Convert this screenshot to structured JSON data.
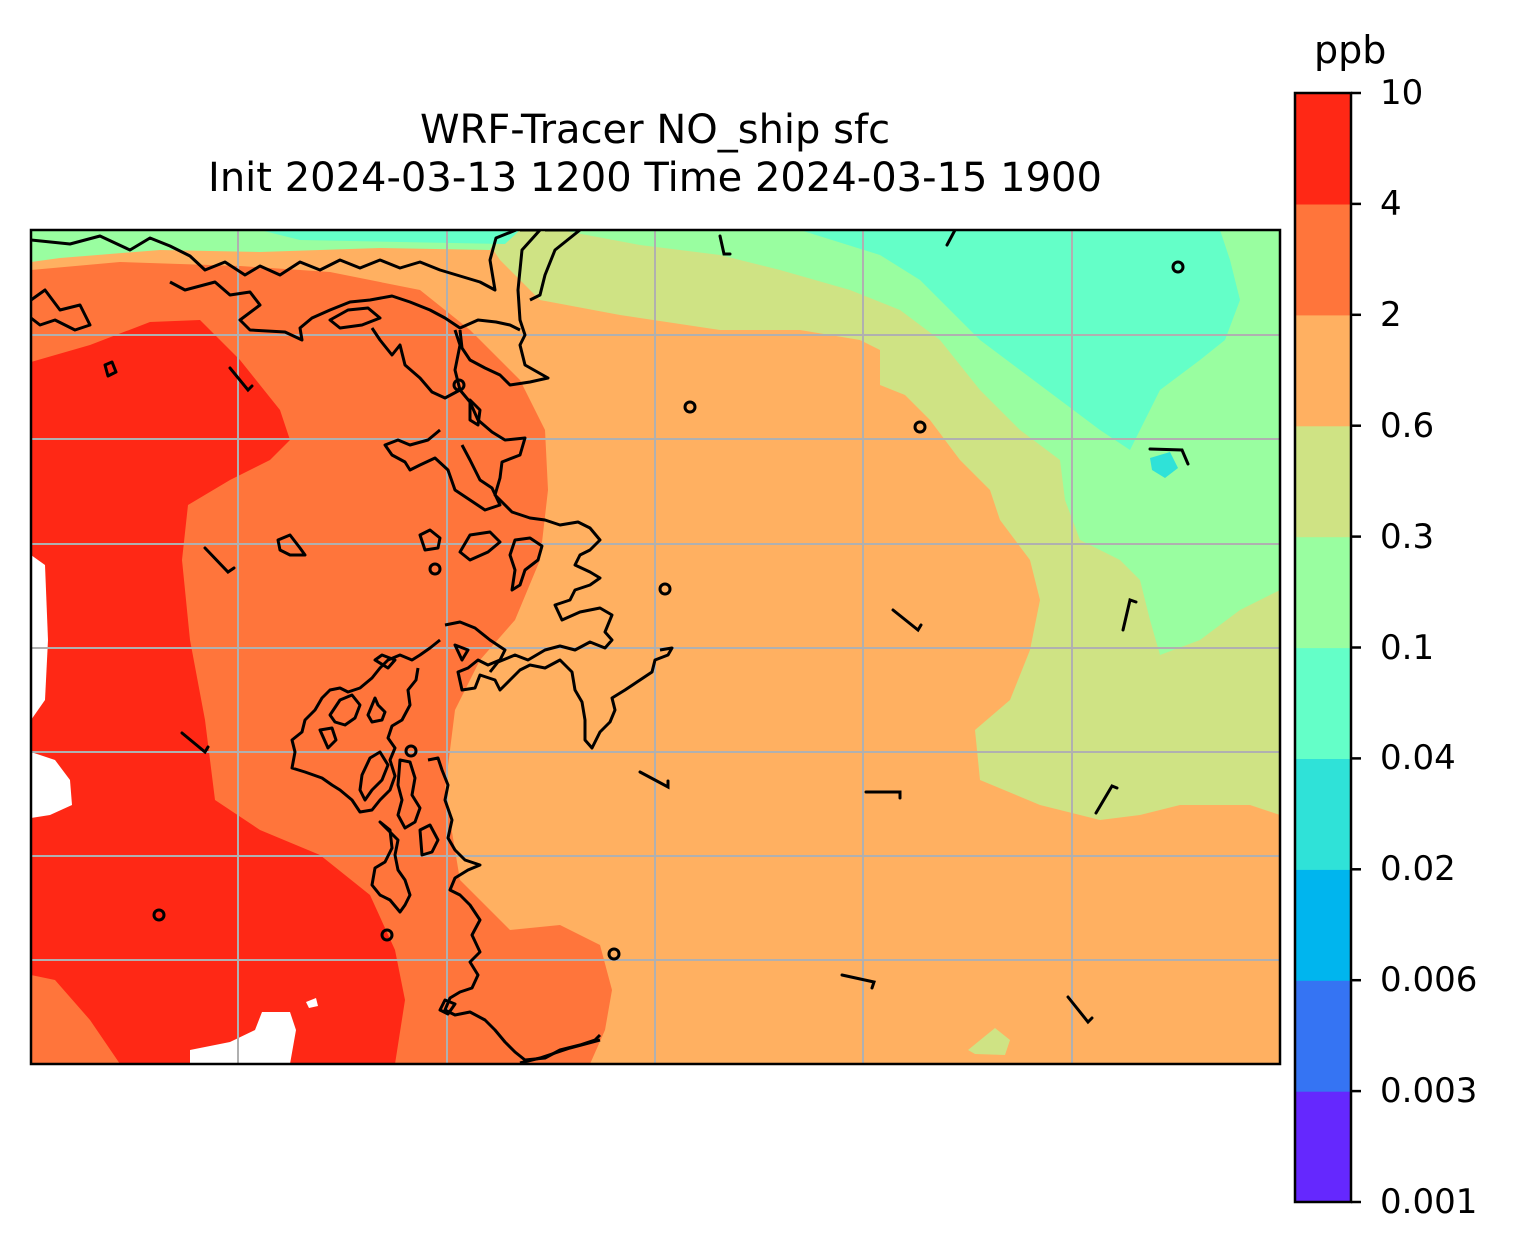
{
  "title": {
    "line1": "WRF-Tracer NO_ship sfc",
    "line2": "Init 2024-03-13 1200 Time 2024-03-15 1900"
  },
  "colorbar": {
    "unit": "ppb",
    "tick_labels": [
      "10",
      "4",
      "2",
      "0.6",
      "0.3",
      "0.1",
      "0.04",
      "0.02",
      "0.006",
      "0.003",
      "0.001"
    ],
    "level_colors_bottom_to_top": [
      "#6528fe",
      "#3574f3",
      "#00b5ee",
      "#2fe2d8",
      "#64ffc8",
      "#99fea0",
      "#cfe384",
      "#ffb061",
      "#ff753b",
      "#ff2815"
    ]
  },
  "map": {
    "field": "NO_ship surface concentration",
    "background_level_color": "#ffb061",
    "gridlines": "on",
    "coastlines": "on",
    "wind_barbs": "on",
    "station_markers": "on"
  }
}
